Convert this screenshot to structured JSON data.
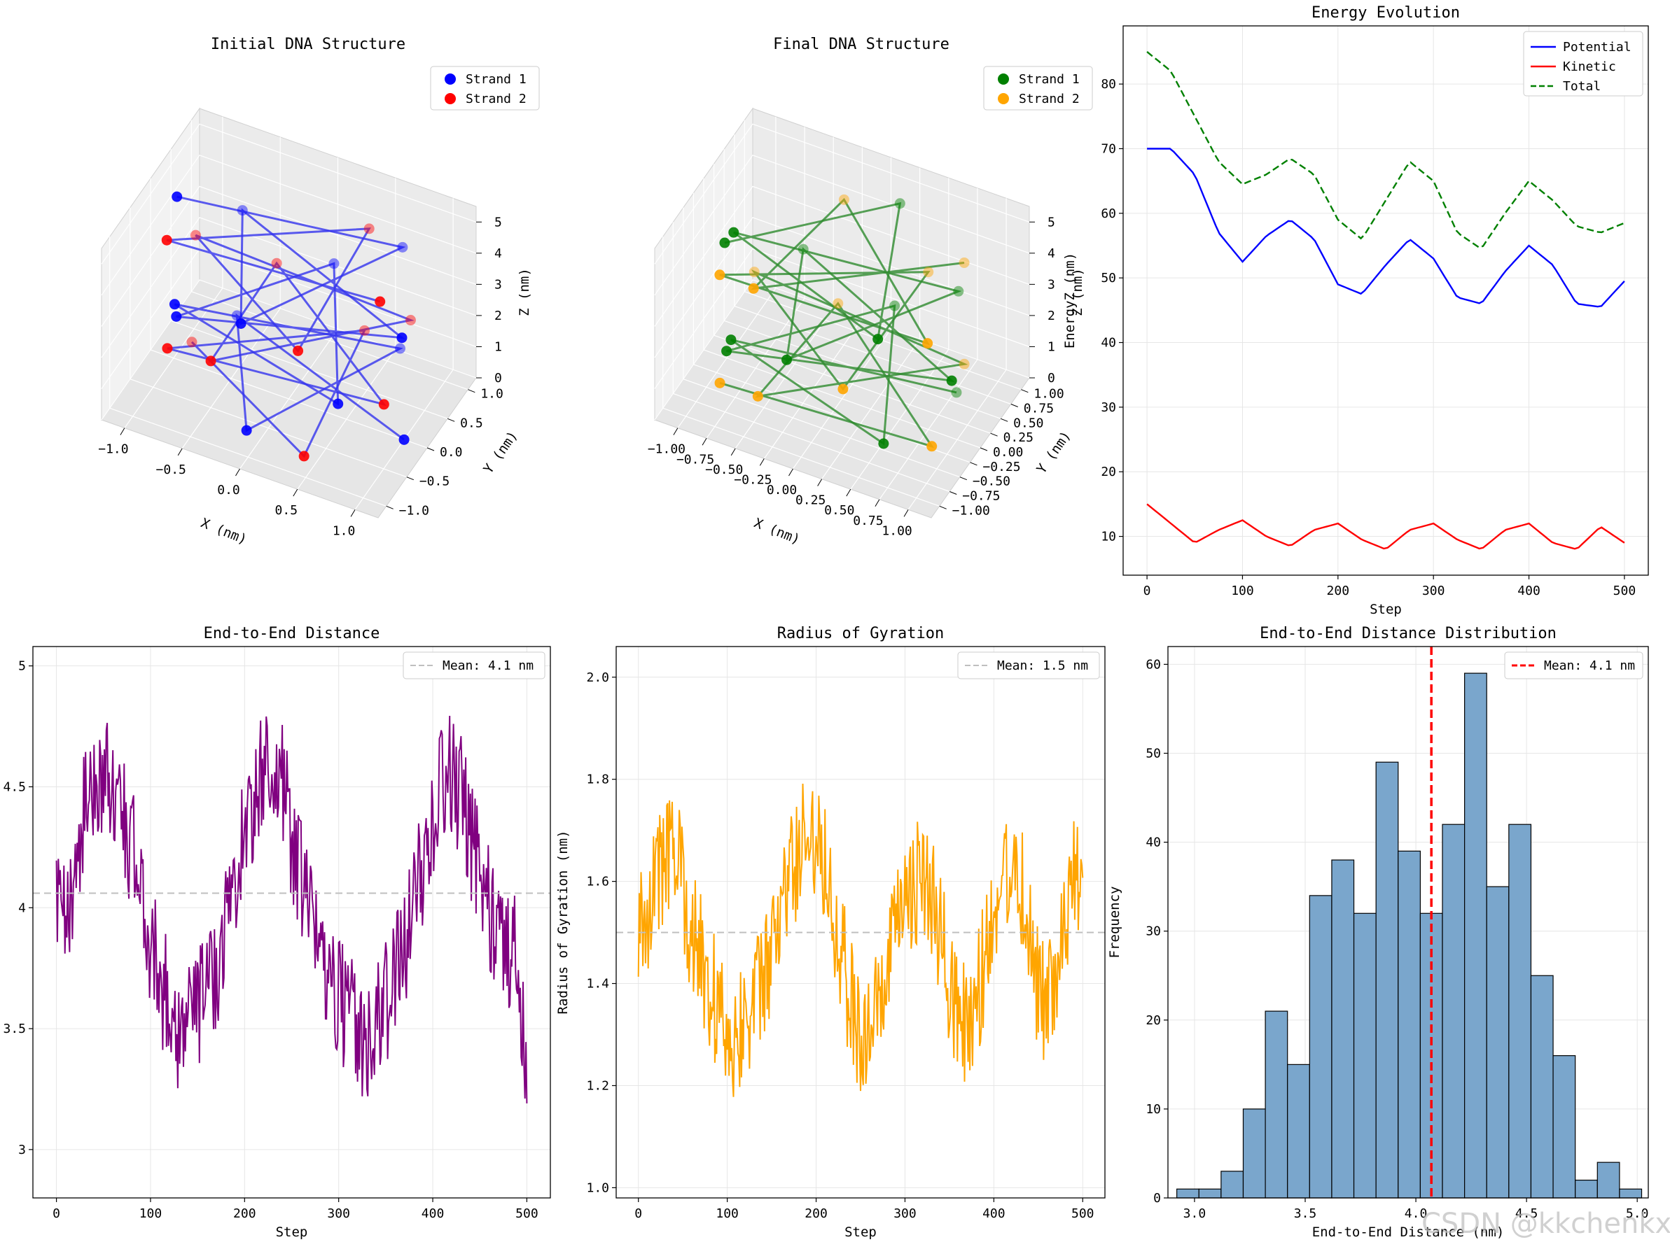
{
  "figure": {
    "watermark": "CSDN @kkchenkx"
  },
  "chart_data": [
    {
      "type": "scatter3d",
      "title": "Initial DNA Structure",
      "xlabel": "X (nm)",
      "ylabel": "Y (nm)",
      "zlabel": "Z (nm)",
      "x_ticks": [
        "−1.0",
        "−0.5",
        "0.0",
        "0.5",
        "1.0"
      ],
      "y_ticks": [
        "−1.0",
        "−0.5",
        "0.0",
        "0.5",
        "1.0"
      ],
      "z_ticks": [
        "0",
        "1",
        "2",
        "3",
        "4",
        "5"
      ],
      "legend": [
        {
          "label": "Strand 1",
          "color": "#0000ff"
        },
        {
          "label": "Strand 2",
          "color": "#ff0000"
        }
      ],
      "line_color": "#3333ee"
    },
    {
      "type": "scatter3d",
      "title": "Final DNA Structure",
      "xlabel": "X (nm)",
      "ylabel": "Y (nm)",
      "zlabel": "Z (nm)",
      "x_ticks": [
        "−1.00",
        "−0.75",
        "−0.50",
        "−0.25",
        "0.00",
        "0.25",
        "0.50",
        "0.75",
        "1.00"
      ],
      "y_ticks": [
        "−1.00",
        "−0.75",
        "−0.50",
        "−0.25",
        "0.00",
        "0.25",
        "0.50",
        "0.75",
        "1.00"
      ],
      "z_ticks": [
        "0",
        "1",
        "2",
        "3",
        "4",
        "5"
      ],
      "legend": [
        {
          "label": "Strand 1",
          "color": "#008000"
        },
        {
          "label": "Strand 2",
          "color": "#ffa500"
        }
      ],
      "line_color": "#2e8b2e"
    },
    {
      "type": "line",
      "title": "Energy Evolution",
      "xlabel": "Step",
      "ylabel": "EnergyZ (nm)",
      "xlim": [
        -25,
        525
      ],
      "ylim": [
        4,
        89
      ],
      "x_ticks": [
        0,
        100,
        200,
        300,
        400,
        500
      ],
      "y_ticks": [
        10,
        20,
        30,
        40,
        50,
        60,
        70,
        80
      ],
      "legend_position": "top-right",
      "series": [
        {
          "name": "Potential",
          "color": "#0000ff",
          "dash": "solid",
          "x": [
            0,
            25,
            50,
            75,
            100,
            125,
            150,
            175,
            200,
            225,
            250,
            275,
            300,
            325,
            350,
            375,
            400,
            425,
            450,
            475,
            500
          ],
          "y": [
            70,
            70,
            66,
            57,
            52.5,
            56.5,
            59,
            56,
            49,
            47.5,
            52,
            56,
            53,
            47,
            46,
            51,
            55,
            52,
            46,
            45.5,
            49.5
          ]
        },
        {
          "name": "Kinetic",
          "color": "#ff0000",
          "dash": "solid",
          "x": [
            0,
            25,
            50,
            75,
            100,
            125,
            150,
            175,
            200,
            225,
            250,
            275,
            300,
            325,
            350,
            375,
            400,
            425,
            450,
            475,
            500
          ],
          "y": [
            15,
            12,
            9,
            11,
            12.5,
            10,
            8.5,
            11,
            12,
            9.5,
            8,
            11,
            12,
            9.5,
            8,
            11,
            12,
            9,
            8,
            11.5,
            9
          ]
        },
        {
          "name": "Total",
          "color": "#008000",
          "dash": "dashed",
          "x": [
            0,
            25,
            50,
            75,
            100,
            125,
            150,
            175,
            200,
            225,
            250,
            275,
            300,
            325,
            350,
            375,
            400,
            425,
            450,
            475,
            500
          ],
          "y": [
            85,
            82,
            75,
            68,
            64.5,
            66,
            68.5,
            66,
            59,
            56,
            62,
            68,
            65,
            57,
            54.5,
            60,
            65,
            62,
            58,
            57,
            58.5
          ]
        }
      ]
    },
    {
      "type": "line",
      "title": "End-to-End Distance",
      "xlabel": "Step",
      "ylabel": "End-to-End Distance (nm)",
      "xlim": [
        -25,
        525
      ],
      "ylim": [
        2.8,
        5.08
      ],
      "x_ticks": [
        0,
        100,
        200,
        300,
        400,
        500
      ],
      "y_ticks": [
        3.0,
        3.5,
        4.0,
        4.5,
        5.0
      ],
      "mean_line": {
        "value": 4.06,
        "label": "Mean: 4.1 nm",
        "color": "#bfbfbf"
      },
      "legend_position": "top-right",
      "series": [
        {
          "name": "End-to-End Distance",
          "color": "#800080",
          "x": [
            0,
            10,
            20,
            30,
            40,
            50,
            60,
            70,
            80,
            90,
            100,
            110,
            120,
            130,
            140,
            150,
            160,
            170,
            180,
            190,
            200,
            210,
            220,
            230,
            240,
            250,
            260,
            270,
            280,
            290,
            300,
            310,
            320,
            330,
            340,
            350,
            360,
            370,
            380,
            390,
            400,
            410,
            420,
            430,
            440,
            450,
            460,
            470,
            480,
            490,
            500
          ],
          "y": [
            4.0,
            3.9,
            4.2,
            4.4,
            4.5,
            4.55,
            4.5,
            4.4,
            4.25,
            4.05,
            3.85,
            3.7,
            3.6,
            3.5,
            3.55,
            3.6,
            3.65,
            3.75,
            3.95,
            4.15,
            4.3,
            4.45,
            4.55,
            4.6,
            4.5,
            4.3,
            4.1,
            3.95,
            3.85,
            3.75,
            3.65,
            3.55,
            3.5,
            3.45,
            3.5,
            3.6,
            3.7,
            3.85,
            4.0,
            4.2,
            4.4,
            4.5,
            4.55,
            4.45,
            4.3,
            4.15,
            4.0,
            3.9,
            3.85,
            3.8,
            3.27
          ]
        }
      ]
    },
    {
      "type": "line",
      "title": "Radius of Gyration",
      "xlabel": "Step",
      "ylabel": "Radius of Gyration (nm)",
      "xlim": [
        -25,
        525
      ],
      "ylim": [
        0.98,
        2.06
      ],
      "x_ticks": [
        0,
        100,
        200,
        300,
        400,
        500
      ],
      "y_ticks": [
        "1.0",
        "1.2",
        "1.4",
        "1.6",
        "1.8",
        "2.0"
      ],
      "mean_line": {
        "value": 1.5,
        "label": "Mean: 1.5 nm",
        "color": "#bfbfbf"
      },
      "legend_position": "top-right",
      "series": [
        {
          "name": "Radius of Gyration",
          "color": "#ffa500",
          "x": [
            0,
            10,
            20,
            30,
            40,
            50,
            60,
            70,
            80,
            90,
            100,
            110,
            120,
            130,
            140,
            150,
            160,
            170,
            180,
            190,
            200,
            210,
            220,
            230,
            240,
            250,
            260,
            270,
            280,
            290,
            300,
            310,
            320,
            330,
            340,
            350,
            360,
            370,
            380,
            390,
            400,
            410,
            420,
            430,
            440,
            450,
            460,
            470,
            480,
            490,
            500
          ],
          "y": [
            1.5,
            1.55,
            1.6,
            1.65,
            1.65,
            1.6,
            1.5,
            1.45,
            1.4,
            1.35,
            1.3,
            1.3,
            1.35,
            1.35,
            1.4,
            1.45,
            1.55,
            1.6,
            1.65,
            1.7,
            1.7,
            1.65,
            1.55,
            1.45,
            1.35,
            1.3,
            1.3,
            1.35,
            1.4,
            1.5,
            1.55,
            1.6,
            1.6,
            1.55,
            1.5,
            1.4,
            1.35,
            1.3,
            1.35,
            1.45,
            1.55,
            1.6,
            1.65,
            1.6,
            1.5,
            1.4,
            1.35,
            1.4,
            1.5,
            1.6,
            1.58
          ]
        }
      ]
    },
    {
      "type": "bar",
      "title": "End-to-End Distance Distribution",
      "xlabel": "End-to-End Distance (nm)",
      "ylabel": "Frequency",
      "xlim": [
        2.88,
        5.05
      ],
      "ylim": [
        0,
        62
      ],
      "x_ticks": [
        "3.0",
        "3.5",
        "4.0",
        "4.5",
        "5.0"
      ],
      "y_ticks": [
        0,
        10,
        20,
        30,
        40,
        50,
        60
      ],
      "bin_width": 0.1,
      "bin_starts": [
        2.92,
        3.02,
        3.12,
        3.22,
        3.32,
        3.42,
        3.52,
        3.62,
        3.72,
        3.82,
        3.92,
        4.02,
        4.12,
        4.22,
        4.32,
        4.42,
        4.52,
        4.62,
        4.72,
        4.82,
        4.92
      ],
      "values": [
        1,
        1,
        3,
        10,
        21,
        15,
        34,
        38,
        32,
        49,
        39,
        32,
        42,
        59,
        35,
        42,
        25,
        16,
        2,
        4,
        1
      ],
      "bar_color": "#7aa6cc",
      "mean_line": {
        "value": 4.07,
        "label": "Mean: 4.1 nm",
        "color": "#ff0000"
      }
    }
  ]
}
